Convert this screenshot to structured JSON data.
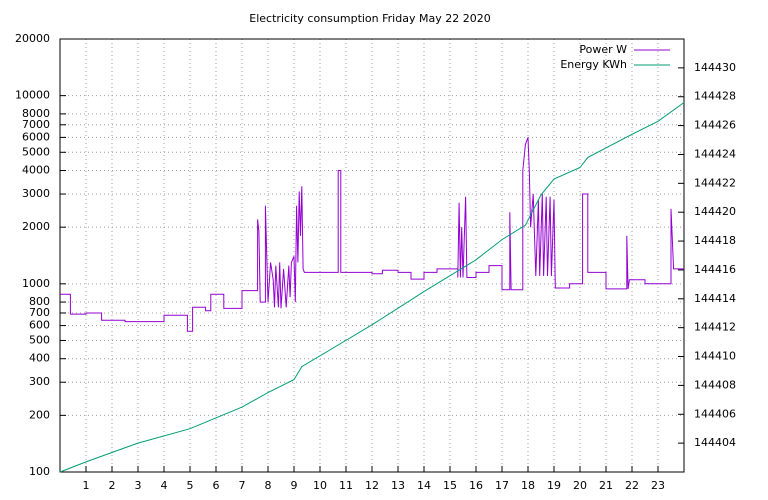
{
  "chart_data": {
    "type": "line",
    "title": "Electricity consumption Friday May 22 2020",
    "xlim": [
      0,
      24
    ],
    "xticks": [
      1,
      2,
      3,
      4,
      5,
      6,
      7,
      8,
      9,
      10,
      11,
      12,
      13,
      14,
      15,
      16,
      17,
      18,
      19,
      20,
      21,
      22,
      23
    ],
    "ylim": [
      100,
      20000
    ],
    "ylog": true,
    "yticks": [
      100,
      200,
      300,
      400,
      500,
      600,
      700,
      800,
      1000,
      2000,
      3000,
      4000,
      5000,
      6000,
      7000,
      8000,
      10000,
      20000
    ],
    "y2lim": [
      144402,
      144432
    ],
    "y2ticks": [
      144404,
      144406,
      144408,
      144410,
      144412,
      144414,
      144416,
      144418,
      144420,
      144422,
      144424,
      144426,
      144428,
      144430
    ],
    "grid": true,
    "legend": "top-right",
    "series": [
      {
        "name": "Power W",
        "color": "#9400d3",
        "axis": "y",
        "x": [
          0,
          0.4,
          0.4,
          1,
          1,
          1.6,
          1.6,
          2.5,
          2.5,
          4,
          4,
          4.9,
          4.9,
          5.1,
          5.1,
          5.6,
          5.6,
          5.8,
          5.8,
          6.3,
          6.3,
          7,
          7,
          7.6,
          7.6,
          7.65,
          7.7,
          7.9,
          7.9,
          8.0,
          8.1,
          8.2,
          8.25,
          8.3,
          8.4,
          8.45,
          8.5,
          8.6,
          8.7,
          8.8,
          8.85,
          8.9,
          9.0,
          9.05,
          9.1,
          9.15,
          9.2,
          9.25,
          9.3,
          9.35,
          9.4,
          10.7,
          10.7,
          10.8,
          10.8,
          12,
          12,
          12.4,
          12.4,
          13,
          13,
          13.5,
          13.5,
          14,
          14,
          14.5,
          14.5,
          15.3,
          15.3,
          15.35,
          15.4,
          15.45,
          15.5,
          15.6,
          15.65,
          16,
          16,
          16.5,
          16.5,
          17,
          17,
          17.3,
          17.3,
          17.35,
          17.8,
          17.8,
          17.9,
          18,
          18.05,
          18.1,
          18.2,
          18.3,
          18.4,
          18.45,
          18.55,
          18.6,
          18.7,
          18.75,
          18.85,
          18.9,
          19,
          19.05,
          19.6,
          19.6,
          20.1,
          20.1,
          20.3,
          20.3,
          21,
          21,
          21.8,
          21.8,
          21.85,
          21.9,
          22.5,
          22.5,
          23.5,
          23.5,
          23.6,
          24
        ],
        "values": [
          880,
          880,
          690,
          690,
          700,
          700,
          640,
          640,
          630,
          630,
          680,
          680,
          560,
          560,
          750,
          750,
          720,
          720,
          880,
          880,
          740,
          740,
          920,
          920,
          2200,
          1900,
          800,
          800,
          2600,
          800,
          1300,
          1050,
          750,
          1250,
          750,
          1300,
          740,
          1200,
          750,
          1250,
          850,
          1300,
          1400,
          800,
          2600,
          1300,
          3100,
          1800,
          3300,
          1200,
          1150,
          1150,
          4000,
          4000,
          1150,
          1150,
          1130,
          1130,
          1180,
          1180,
          1150,
          1150,
          1060,
          1060,
          1150,
          1150,
          1200,
          1200,
          1080,
          2700,
          1080,
          2000,
          1080,
          2900,
          1080,
          1080,
          1150,
          1150,
          1250,
          1250,
          930,
          930,
          2400,
          930,
          930,
          4000,
          5500,
          6000,
          4000,
          2000,
          3000,
          1100,
          2800,
          1100,
          3000,
          1100,
          2900,
          1100,
          2900,
          1100,
          2800,
          950,
          950,
          1000,
          1000,
          3000,
          3000,
          1150,
          1150,
          940,
          940,
          1800,
          940,
          1050,
          1050,
          1000,
          1000,
          2500,
          1200,
          1200
        ]
      },
      {
        "name": "Energy KWh",
        "color": "#009e73",
        "axis": "y2",
        "x": [
          0,
          1,
          3,
          5,
          7,
          8,
          9,
          9.3,
          10.7,
          12,
          14,
          15,
          16,
          17,
          17.9,
          18.5,
          19,
          20,
          20.3,
          22,
          23,
          24
        ],
        "values": [
          144402,
          144402.7,
          144404,
          144405,
          144406.5,
          144407.5,
          144408.4,
          144409.3,
          144410.8,
          144412.2,
          144414.5,
          144415.6,
          144416.7,
          144418.1,
          144419.1,
          144421.2,
          144422.3,
          144423.1,
          144423.8,
          144425.4,
          144426.3,
          144427.6
        ]
      }
    ]
  }
}
